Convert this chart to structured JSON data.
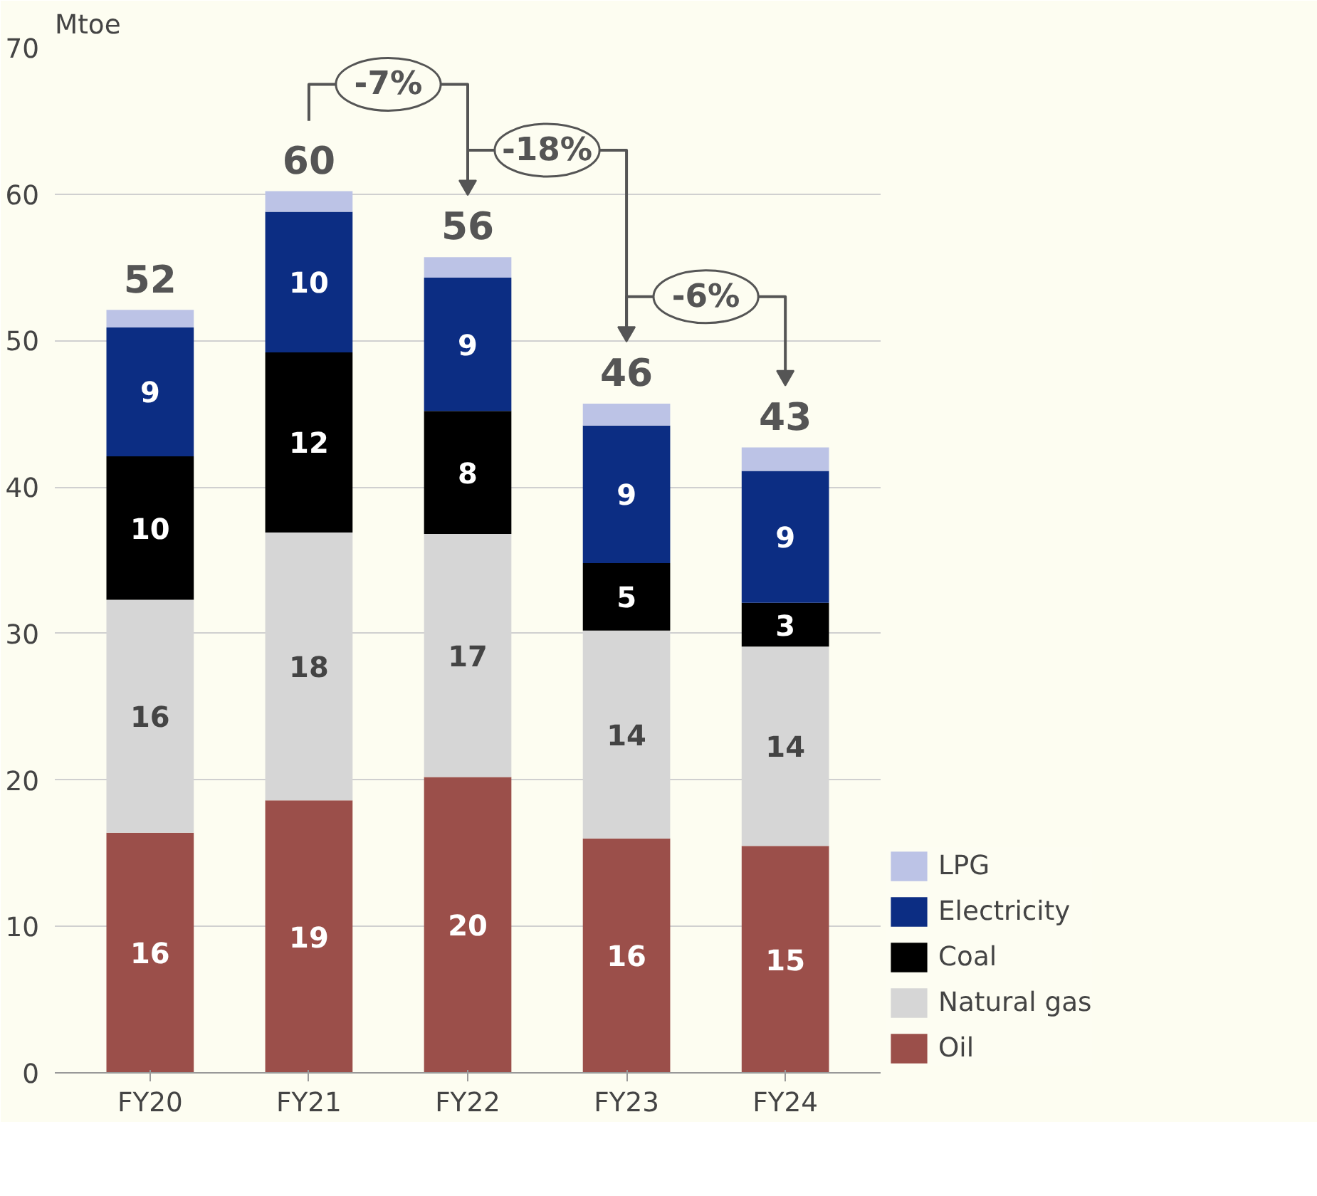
{
  "chart_data": {
    "type": "bar",
    "stacked": true,
    "ylabel": "Mtoe",
    "categories": [
      "FY20",
      "FY21",
      "FY22",
      "FY23",
      "FY24"
    ],
    "series": [
      {
        "name": "Oil",
        "color": "#9b4f4a",
        "values": [
          16.4,
          18.6,
          20.2,
          16.0,
          15.5
        ],
        "value_labels": [
          "16",
          "19",
          "20",
          "16",
          "15"
        ]
      },
      {
        "name": "Natural gas",
        "color": "#d6d6d6",
        "values": [
          15.9,
          18.3,
          16.6,
          14.2,
          13.6
        ],
        "value_labels": [
          "16",
          "18",
          "17",
          "14",
          "14"
        ]
      },
      {
        "name": "Coal",
        "color": "#000000",
        "values": [
          9.8,
          12.3,
          8.4,
          4.6,
          3.0
        ],
        "value_labels": [
          "10",
          "12",
          "8",
          "5",
          "3"
        ]
      },
      {
        "name": "Electricity",
        "color": "#0c2d83",
        "values": [
          8.8,
          9.6,
          9.1,
          9.4,
          9.0
        ],
        "value_labels": [
          "9",
          "10",
          "9",
          "9",
          "9"
        ]
      },
      {
        "name": "LPG",
        "color": "#bcc3e6",
        "values": [
          1.2,
          1.4,
          1.4,
          1.5,
          1.6
        ],
        "value_labels": [
          null,
          null,
          null,
          null,
          null
        ]
      }
    ],
    "totals": [
      "52",
      "60",
      "56",
      "46",
      "43"
    ],
    "annotations": [
      "-7%",
      "-18%",
      "-6%"
    ],
    "ylim": [
      0,
      70
    ],
    "yticks": [
      0,
      10,
      20,
      30,
      40,
      50,
      60,
      70
    ],
    "grid": "y",
    "legend": "bottom right"
  }
}
